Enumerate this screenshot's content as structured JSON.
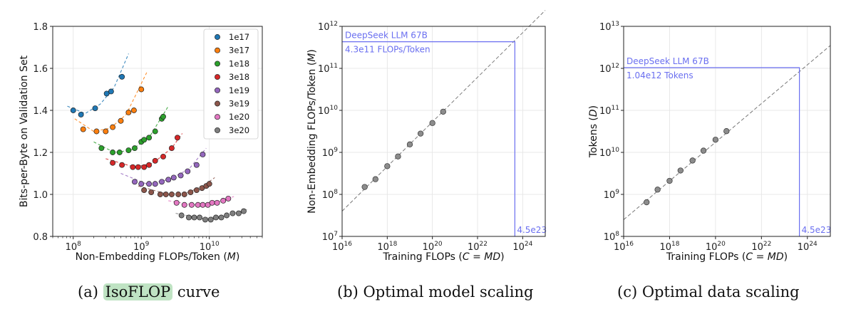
{
  "captions": [
    {
      "prefix": "(a)",
      "highlight": "IsoFLOP",
      "rest": "curve"
    },
    {
      "prefix": "(b)",
      "highlight": "",
      "rest": "Optimal model scaling"
    },
    {
      "prefix": "(c)",
      "highlight": "",
      "rest": "Optimal data scaling"
    }
  ],
  "chart_data": [
    {
      "type": "scatter",
      "xlabel": "Non-Embedding FLOPs/Token (M)",
      "ylabel": "Bits-per-Byte on Validation Set",
      "xscale": "log",
      "xlim": [
        50000000.0,
        60000000000.0
      ],
      "ylim": [
        0.8,
        1.8
      ],
      "yticks": [
        "0.8",
        "1.0",
        "1.2",
        "1.4",
        "1.6",
        "1.8"
      ],
      "xticks": [
        {
          "base": "10",
          "exp": "8"
        },
        {
          "base": "10",
          "exp": "9"
        },
        {
          "base": "10",
          "exp": "10"
        }
      ],
      "grid": true,
      "legend_position": "top-right",
      "series": [
        {
          "name": "1e17",
          "color": "#1f77b4",
          "x": [
            100000000.0,
            130000000.0,
            210000000.0,
            310000000.0,
            360000000.0,
            520000000.0
          ],
          "y": [
            1.4,
            1.38,
            1.41,
            1.48,
            1.49,
            1.56
          ],
          "fit": [
            [
              82000000.0,
              1.42
            ],
            [
              150000000.0,
              1.385
            ],
            [
              250000000.0,
              1.43
            ],
            [
              400000000.0,
              1.51
            ],
            [
              650000000.0,
              1.67
            ]
          ]
        },
        {
          "name": "3e17",
          "color": "#ff7f0e",
          "x": [
            140000000.0,
            220000000.0,
            300000000.0,
            380000000.0,
            500000000.0,
            650000000.0,
            780000000.0,
            1000000000.0
          ],
          "y": [
            1.31,
            1.3,
            1.3,
            1.32,
            1.35,
            1.39,
            1.4,
            1.5
          ],
          "fit": [
            [
              105000000.0,
              1.36
            ],
            [
              200000000.0,
              1.3
            ],
            [
              350000000.0,
              1.315
            ],
            [
              600000000.0,
              1.38
            ],
            [
              1200000000.0,
              1.58
            ]
          ]
        },
        {
          "name": "1e18",
          "color": "#2ca02c",
          "x": [
            260000000.0,
            380000000.0,
            480000000.0,
            650000000.0,
            800000000.0,
            1000000000.0,
            1100000000.0,
            1300000000.0,
            1600000000.0,
            2000000000.0,
            2100000000.0
          ],
          "y": [
            1.22,
            1.2,
            1.2,
            1.21,
            1.22,
            1.25,
            1.26,
            1.27,
            1.3,
            1.36,
            1.37
          ],
          "fit": [
            [
              200000000.0,
              1.25
            ],
            [
              400000000.0,
              1.2
            ],
            [
              700000000.0,
              1.21
            ],
            [
              1300000000.0,
              1.27
            ],
            [
              2500000000.0,
              1.42
            ]
          ]
        },
        {
          "name": "3e18",
          "color": "#d62728",
          "x": [
            380000000.0,
            520000000.0,
            750000000.0,
            900000000.0,
            1100000000.0,
            1300000000.0,
            1600000000.0,
            2100000000.0,
            2800000000.0,
            3400000000.0
          ],
          "y": [
            1.15,
            1.14,
            1.13,
            1.13,
            1.13,
            1.14,
            1.16,
            1.18,
            1.22,
            1.27
          ],
          "fit": [
            [
              300000000.0,
              1.17
            ],
            [
              800000000.0,
              1.13
            ],
            [
              1500000000.0,
              1.15
            ],
            [
              2800000000.0,
              1.22
            ],
            [
              4000000000.0,
              1.29
            ]
          ]
        },
        {
          "name": "1e19",
          "color": "#9467bd",
          "x": [
            800000000.0,
            1000000000.0,
            1300000000.0,
            1600000000.0,
            2000000000.0,
            2500000000.0,
            3000000000.0,
            3800000000.0,
            4800000000.0,
            6500000000.0,
            8000000000.0
          ],
          "y": [
            1.06,
            1.05,
            1.05,
            1.05,
            1.06,
            1.07,
            1.08,
            1.09,
            1.11,
            1.14,
            1.19
          ],
          "fit": [
            [
              500000000.0,
              1.1
            ],
            [
              1200000000.0,
              1.05
            ],
            [
              2500000000.0,
              1.07
            ],
            [
              5000000000.0,
              1.12
            ],
            [
              9000000000.0,
              1.22
            ]
          ]
        },
        {
          "name": "3e19",
          "color": "#8c564b",
          "x": [
            1100000000.0,
            1400000000.0,
            1900000000.0,
            2300000000.0,
            2800000000.0,
            3500000000.0,
            4300000000.0,
            5300000000.0,
            6500000000.0,
            7800000000.0,
            9000000000.0,
            10000000000.0
          ],
          "y": [
            1.02,
            1.01,
            1.0,
            1.0,
            1.0,
            1.0,
            1.0,
            1.01,
            1.02,
            1.03,
            1.04,
            1.05
          ],
          "fit": [
            [
              900000000.0,
              1.04
            ],
            [
              2500000000.0,
              1.0
            ],
            [
              5000000000.0,
              1.01
            ],
            [
              9000000000.0,
              1.05
            ],
            [
              12000000000.0,
              1.08
            ]
          ]
        },
        {
          "name": "1e20",
          "color": "#e377c2",
          "x": [
            3300000000.0,
            4300000000.0,
            5500000000.0,
            6800000000.0,
            8000000000.0,
            9500000000.0,
            11000000000.0,
            13000000000.0,
            16000000000.0,
            19000000000.0
          ],
          "y": [
            0.96,
            0.95,
            0.95,
            0.95,
            0.95,
            0.95,
            0.96,
            0.96,
            0.97,
            0.98
          ],
          "fit": [
            [
              2500000000.0,
              0.97
            ],
            [
              6000000000.0,
              0.95
            ],
            [
              12000000000.0,
              0.96
            ],
            [
              23000000000.0,
              0.99
            ]
          ]
        },
        {
          "name": "3e20",
          "color": "#7f7f7f",
          "x": [
            3900000000.0,
            5000000000.0,
            6000000000.0,
            7200000000.0,
            8700000000.0,
            10500000000.0,
            12500000000.0,
            15000000000.0,
            18000000000.0,
            22000000000.0,
            27000000000.0,
            32000000000.0
          ],
          "y": [
            0.9,
            0.89,
            0.89,
            0.89,
            0.88,
            0.88,
            0.89,
            0.89,
            0.9,
            0.91,
            0.91,
            0.92
          ],
          "fit": [
            [
              3200000000.0,
              0.91
            ],
            [
              8000000000.0,
              0.885
            ],
            [
              18000000000.0,
              0.9
            ],
            [
              38000000000.0,
              0.93
            ]
          ]
        }
      ]
    },
    {
      "type": "scatter",
      "xlabel": "Training FLOPs (C = MD)",
      "ylabel": "Non-Embedding FLOPs/Token (M)",
      "xscale": "log",
      "yscale": "log",
      "xlim": [
        1e+16,
        1e+25
      ],
      "ylim": [
        10000000.0,
        1000000000000.0
      ],
      "xticks": [
        {
          "base": "10",
          "exp": "16"
        },
        {
          "base": "10",
          "exp": "18"
        },
        {
          "base": "10",
          "exp": "20"
        },
        {
          "base": "10",
          "exp": "22"
        },
        {
          "base": "10",
          "exp": "24"
        }
      ],
      "yticks": [
        {
          "base": "10",
          "exp": "7"
        },
        {
          "base": "10",
          "exp": "8"
        },
        {
          "base": "10",
          "exp": "9"
        },
        {
          "base": "10",
          "exp": "10"
        },
        {
          "base": "10",
          "exp": "11"
        },
        {
          "base": "10",
          "exp": "12"
        }
      ],
      "grid": true,
      "points": {
        "x": [
          1e+17,
          3e+17,
          1e+18,
          3e+18,
          1e+19,
          3e+19,
          1e+20,
          3e+20
        ],
        "y": [
          150000000.0,
          230000000.0,
          470000000.0,
          800000000.0,
          1550000000.0,
          2800000000.0,
          5000000000.0,
          9300000000.0
        ]
      },
      "fit": [
        [
          1e+16,
          40000000.0
        ],
        [
          1e+25,
          2400000000000.0
        ]
      ],
      "annotation": {
        "label": "DeepSeek LLM 67B",
        "value_label": "4.3e11 FLOPs/Token",
        "x_label": "4.5e23",
        "x": 4.5e+23,
        "y": 430000000000.0,
        "color": "#6a6ff0"
      }
    },
    {
      "type": "scatter",
      "xlabel": "Training FLOPs (C = MD)",
      "ylabel": "Tokens (D)",
      "xscale": "log",
      "yscale": "log",
      "xlim": [
        1e+16,
        1e+25
      ],
      "ylim": [
        100000000.0,
        10000000000000.0
      ],
      "xticks": [
        {
          "base": "10",
          "exp": "16"
        },
        {
          "base": "10",
          "exp": "18"
        },
        {
          "base": "10",
          "exp": "20"
        },
        {
          "base": "10",
          "exp": "22"
        },
        {
          "base": "10",
          "exp": "24"
        }
      ],
      "yticks": [
        {
          "base": "10",
          "exp": "8"
        },
        {
          "base": "10",
          "exp": "9"
        },
        {
          "base": "10",
          "exp": "10"
        },
        {
          "base": "10",
          "exp": "11"
        },
        {
          "base": "10",
          "exp": "12"
        },
        {
          "base": "10",
          "exp": "13"
        }
      ],
      "grid": true,
      "points": {
        "x": [
          1e+17,
          3e+17,
          1e+18,
          3e+18,
          1e+19,
          3e+19,
          1e+20,
          3e+20
        ],
        "y": [
          650000000.0,
          1300000000.0,
          2100000000.0,
          3700000000.0,
          6400000000.0,
          11000000000.0,
          20000000000.0,
          32000000000.0
        ]
      },
      "fit": [
        [
          1e+16,
          250000000.0
        ],
        [
          1e+25,
          3500000000000.0
        ]
      ],
      "annotation": {
        "label": "DeepSeek LLM 67B",
        "value_label": "1.04e12 Tokens",
        "x_label": "4.5e23",
        "x": 4.5e+23,
        "y": 1040000000000.0,
        "color": "#6a6ff0"
      }
    }
  ]
}
